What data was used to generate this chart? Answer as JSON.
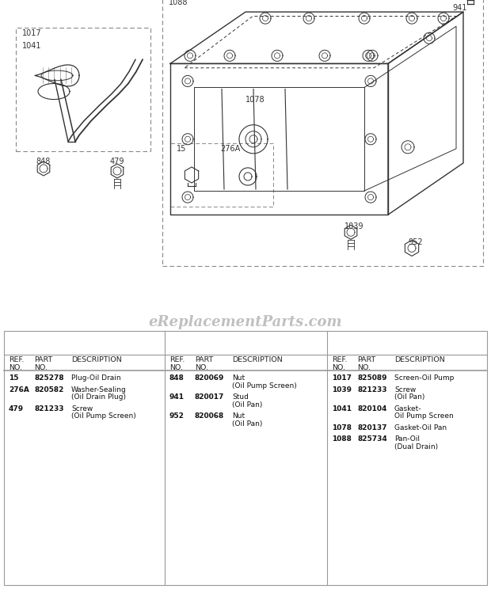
{
  "watermark": "eReplacementParts.com",
  "bg_color": "#ffffff",
  "line_color": "#333333",
  "parts_col1": [
    {
      "ref": "15",
      "part": "825278",
      "desc": [
        "Plug-Oil Drain"
      ]
    },
    {
      "ref": "276A",
      "part": "820582",
      "desc": [
        "Washer-Sealing",
        "(Oil Drain Plug)"
      ]
    },
    {
      "ref": "479",
      "part": "821233",
      "desc": [
        "Screw",
        "(Oil Pump Screen)"
      ]
    }
  ],
  "parts_col2": [
    {
      "ref": "848",
      "part": "820069",
      "desc": [
        "Nut",
        "(Oil Pump Screen)"
      ]
    },
    {
      "ref": "941",
      "part": "820017",
      "desc": [
        "Stud",
        "(Oil Pan)"
      ]
    },
    {
      "ref": "952",
      "part": "820068",
      "desc": [
        "Nut",
        "(Oil Pan)"
      ]
    }
  ],
  "parts_col3": [
    {
      "ref": "1017",
      "part": "825089",
      "desc": [
        "Screen-Oil Pump"
      ]
    },
    {
      "ref": "1039",
      "part": "821233",
      "desc": [
        "Screw",
        "(Oil Pan)"
      ]
    },
    {
      "ref": "1041",
      "part": "820104",
      "desc": [
        "Gasket-",
        "Oil Pump Screen"
      ]
    },
    {
      "ref": "1078",
      "part": "820137",
      "desc": [
        "Gasket-Oil Pan"
      ]
    },
    {
      "ref": "1088",
      "part": "825734",
      "desc": [
        "Pan-Oil",
        "(Dual Drain)"
      ]
    }
  ]
}
